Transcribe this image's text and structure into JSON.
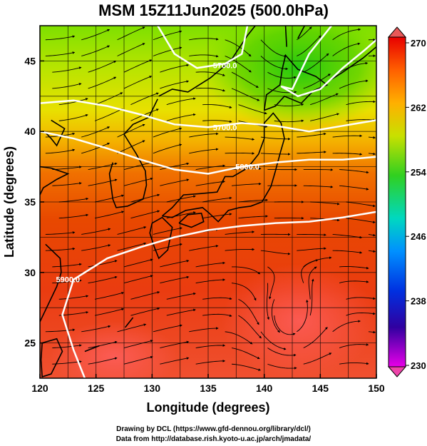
{
  "title": "MSM 15Z11Jun2025 (500.0hPa)",
  "xaxis": {
    "label": "Longitude (degrees)",
    "range": [
      120,
      150
    ],
    "ticks": [
      "120",
      "125",
      "130",
      "135",
      "140",
      "145",
      "150"
    ]
  },
  "yaxis": {
    "label": "Latitude  (degrees)",
    "range": [
      22.5,
      47.5
    ],
    "ticks": [
      "25",
      "30",
      "35",
      "40",
      "45"
    ]
  },
  "colorbar": {
    "range": [
      230,
      270
    ],
    "ticks": [
      "270",
      "262",
      "254",
      "246",
      "238",
      "230"
    ]
  },
  "contours": [
    {
      "label": "5700.0"
    },
    {
      "label": "5800.0"
    },
    {
      "label": "5900.0"
    }
  ],
  "credits": {
    "line1": "Drawing by DCL (https://www.gfd-dennou.org/library/dcl/)",
    "line2": "Data from http://database.rish.kyoto-u.ac.jp/arch/jmadata/"
  }
}
